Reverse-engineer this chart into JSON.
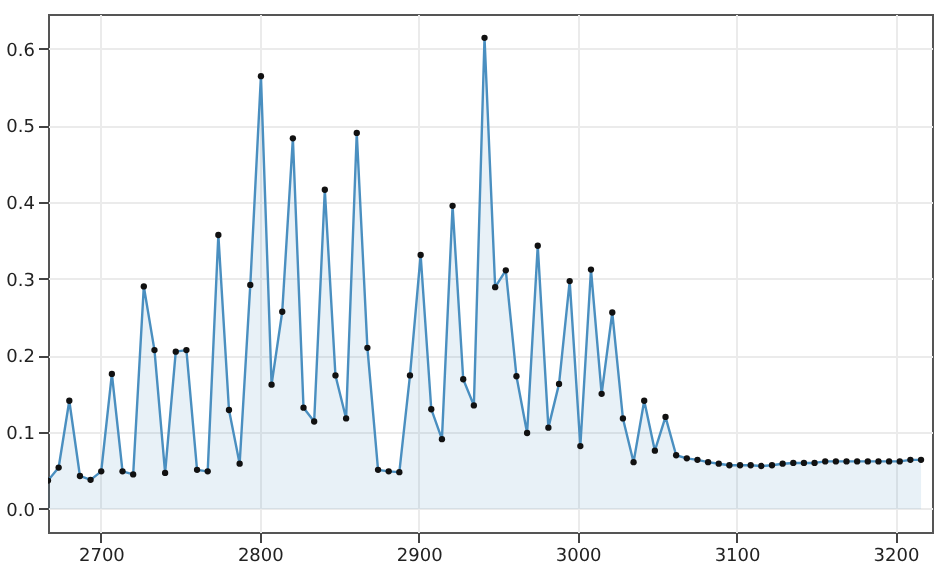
{
  "chart_data": {
    "type": "area",
    "marker": "circle",
    "grid": true,
    "xlim": [
      2666.7,
      3223
    ],
    "ylim": [
      -0.03,
      0.645
    ],
    "xticks": [
      2700,
      2800,
      2900,
      3000,
      3100,
      3200
    ],
    "yticks": [
      {
        "value": 0,
        "label": "0.0"
      },
      0.1,
      0.2,
      0.3,
      0.4,
      0.5,
      0.6
    ],
    "x": [
      2666.7,
      2673.4,
      2680.1,
      2686.8,
      2693.5,
      2700.2,
      2706.9,
      2713.6,
      2720.3,
      2727.0,
      2733.7,
      2740.4,
      2747.1,
      2753.8,
      2760.5,
      2767.2,
      2773.9,
      2780.6,
      2787.3,
      2794.0,
      2800.7,
      2807.4,
      2814.1,
      2820.8,
      2827.5,
      2834.2,
      2840.9,
      2847.6,
      2854.3,
      2861.0,
      2867.7,
      2874.4,
      2881.1,
      2887.8,
      2894.5,
      2901.2,
      2907.9,
      2914.6,
      2921.3,
      2928.0,
      2934.7,
      2941.4,
      2948.1,
      2954.8,
      2961.5,
      2968.2,
      2974.9,
      2981.6,
      2988.3,
      2995.0,
      3001.7,
      3008.4,
      3015.1,
      3021.8,
      3028.5,
      3035.2,
      3041.9,
      3048.6,
      3055.3,
      3062.0,
      3068.7,
      3075.4,
      3082.1,
      3088.8,
      3095.5,
      3102.2,
      3108.9,
      3115.6,
      3122.3,
      3129.0,
      3135.7,
      3142.4,
      3149.1,
      3155.8,
      3162.5,
      3169.2,
      3175.9,
      3182.6,
      3189.3,
      3196.0,
      3202.7,
      3209.4,
      3216.1
    ],
    "series": [
      {
        "color": "#4a8fc0",
        "values": [
          0.037,
          0.054,
          0.141,
          0.043,
          0.038,
          0.049,
          0.176,
          0.049,
          0.045,
          0.29,
          0.207,
          0.047,
          0.205,
          0.207,
          0.051,
          0.049,
          0.357,
          0.129,
          0.059,
          0.292,
          0.564,
          0.162,
          0.257,
          0.483,
          0.132,
          0.114,
          0.416,
          0.174,
          0.118,
          0.49,
          0.21,
          0.051,
          0.049,
          0.048,
          0.174,
          0.331,
          0.13,
          0.091,
          0.395,
          0.169,
          0.135,
          0.614,
          0.289,
          0.311,
          0.173,
          0.099,
          0.343,
          0.106,
          0.163,
          0.297,
          0.082,
          0.312,
          0.15,
          0.256,
          0.118,
          0.061,
          0.141,
          0.076,
          0.12,
          0.07,
          0.066,
          0.064,
          0.061,
          0.059,
          0.057,
          0.057,
          0.057,
          0.056,
          0.057,
          0.059,
          0.06,
          0.06,
          0.06,
          0.062,
          0.062,
          0.062,
          0.062,
          0.062,
          0.062,
          0.062,
          0.062,
          0.064,
          0.064
        ]
      }
    ]
  }
}
